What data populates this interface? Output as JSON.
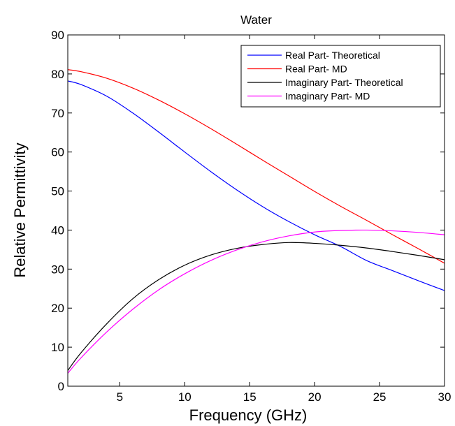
{
  "chart_data": {
    "type": "line",
    "title": "Water",
    "xlabel": "Frequency (GHz)",
    "ylabel": "Relative Permittivity",
    "xlim": [
      1,
      30
    ],
    "ylim": [
      0,
      90
    ],
    "xticks": [
      5,
      10,
      15,
      20,
      25,
      30
    ],
    "yticks": [
      0,
      10,
      20,
      30,
      40,
      50,
      60,
      70,
      80,
      90
    ],
    "grid": false,
    "legend_position": "top-right",
    "x": [
      1,
      2,
      4,
      6,
      8,
      10,
      12,
      14,
      16,
      18,
      20,
      22,
      24,
      26,
      28,
      30
    ],
    "series": [
      {
        "name": "Real Part- Theoretical",
        "color": "#0000ff",
        "values": [
          78.2,
          77.3,
          74.3,
          70.0,
          65.1,
          60.0,
          55.0,
          50.3,
          46.0,
          42.2,
          38.8,
          35.8,
          32.2,
          29.6,
          27.0,
          24.5
        ]
      },
      {
        "name": "Real Part- MD",
        "color": "#ff0000",
        "values": [
          81.1,
          80.6,
          78.9,
          76.4,
          73.3,
          69.8,
          66.0,
          62.0,
          57.9,
          53.9,
          49.9,
          46.1,
          42.5,
          38.8,
          35.2,
          31.5
        ]
      },
      {
        "name": "Imaginary Part- Theoretical",
        "color": "#000000",
        "values": [
          4.0,
          8.5,
          16.0,
          22.4,
          27.3,
          31.0,
          33.6,
          35.3,
          36.3,
          36.8,
          36.6,
          36.1,
          35.4,
          34.5,
          33.5,
          32.4
        ]
      },
      {
        "name": "Imaginary Part- MD",
        "color": "#ff00ff",
        "values": [
          3.3,
          7.2,
          13.9,
          19.7,
          24.7,
          28.8,
          32.2,
          34.9,
          37.0,
          38.5,
          39.5,
          39.9,
          40.0,
          39.8,
          39.4,
          38.8
        ]
      }
    ]
  }
}
